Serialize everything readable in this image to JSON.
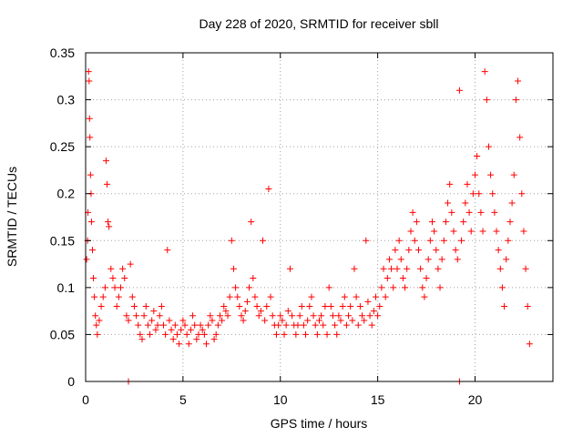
{
  "chart_data": {
    "type": "scatter",
    "title": "Day 228 of 2020, SRMTID for receiver sbll",
    "xlabel": "GPS time / hours",
    "ylabel": "SRMTID / TECUs",
    "xlim": [
      0,
      24
    ],
    "ylim": [
      0,
      0.35
    ],
    "xticks": [
      0,
      5,
      10,
      15,
      20
    ],
    "xtick_labels": [
      "0",
      "5",
      "10",
      "15",
      "20"
    ],
    "yticks": [
      0,
      0.05,
      0.1,
      0.15,
      0.2,
      0.25,
      0.3,
      0.35
    ],
    "ytick_labels": [
      "0",
      "0.05",
      "0.1",
      "0.15",
      "0.2",
      "0.25",
      "0.3",
      "0.35"
    ],
    "grid": true,
    "legend": "none",
    "marker": "+",
    "color": "#ff0000",
    "series": [
      {
        "points": [
          [
            0.05,
            0.13
          ],
          [
            0.1,
            0.15
          ],
          [
            0.12,
            0.18
          ],
          [
            0.15,
            0.33
          ],
          [
            0.18,
            0.32
          ],
          [
            0.2,
            0.28
          ],
          [
            0.22,
            0.26
          ],
          [
            0.25,
            0.22
          ],
          [
            0.28,
            0.2
          ],
          [
            0.3,
            0.17
          ],
          [
            0.35,
            0.14
          ],
          [
            0.4,
            0.11
          ],
          [
            0.45,
            0.09
          ],
          [
            0.5,
            0.07
          ],
          [
            0.55,
            0.06
          ],
          [
            0.6,
            0.05
          ],
          [
            0.7,
            0.065
          ],
          [
            0.8,
            0.08
          ],
          [
            0.9,
            0.09
          ],
          [
            1.0,
            0.1
          ],
          [
            1.05,
            0.235
          ],
          [
            1.1,
            0.21
          ],
          [
            1.15,
            0.17
          ],
          [
            1.2,
            0.165
          ],
          [
            1.3,
            0.12
          ],
          [
            1.4,
            0.11
          ],
          [
            1.5,
            0.1
          ],
          [
            1.6,
            0.08
          ],
          [
            1.7,
            0.09
          ],
          [
            1.8,
            0.1
          ],
          [
            1.9,
            0.12
          ],
          [
            2.0,
            0.11
          ],
          [
            2.1,
            0.07
          ],
          [
            2.2,
            0.065
          ],
          [
            2.3,
            0.125
          ],
          [
            2.4,
            0.09
          ],
          [
            2.5,
            0.08
          ],
          [
            2.6,
            0.07
          ],
          [
            2.7,
            0.06
          ],
          [
            2.8,
            0.05
          ],
          [
            2.9,
            0.045
          ],
          [
            3.0,
            0.07
          ],
          [
            3.1,
            0.08
          ],
          [
            3.2,
            0.06
          ],
          [
            3.3,
            0.05
          ],
          [
            3.4,
            0.065
          ],
          [
            3.5,
            0.075
          ],
          [
            3.6,
            0.055
          ],
          [
            3.7,
            0.06
          ],
          [
            3.8,
            0.07
          ],
          [
            3.9,
            0.08
          ],
          [
            4.0,
            0.06
          ],
          [
            4.1,
            0.05
          ],
          [
            4.2,
            0.14
          ],
          [
            4.3,
            0.065
          ],
          [
            4.4,
            0.055
          ],
          [
            4.5,
            0.045
          ],
          [
            4.6,
            0.06
          ],
          [
            4.7,
            0.05
          ],
          [
            4.8,
            0.04
          ],
          [
            4.9,
            0.055
          ],
          [
            5.0,
            0.065
          ],
          [
            5.1,
            0.06
          ],
          [
            5.2,
            0.05
          ],
          [
            5.3,
            0.04
          ],
          [
            5.4,
            0.055
          ],
          [
            5.5,
            0.07
          ],
          [
            5.6,
            0.06
          ],
          [
            5.7,
            0.045
          ],
          [
            5.8,
            0.05
          ],
          [
            5.9,
            0.06
          ],
          [
            6.0,
            0.055
          ],
          [
            6.1,
            0.05
          ],
          [
            6.2,
            0.04
          ],
          [
            6.3,
            0.06
          ],
          [
            6.4,
            0.07
          ],
          [
            6.5,
            0.065
          ],
          [
            6.6,
            0.045
          ],
          [
            6.7,
            0.05
          ],
          [
            6.8,
            0.06
          ],
          [
            6.9,
            0.07
          ],
          [
            7.0,
            0.065
          ],
          [
            7.1,
            0.08
          ],
          [
            7.2,
            0.075
          ],
          [
            7.3,
            0.07
          ],
          [
            7.4,
            0.09
          ],
          [
            7.5,
            0.15
          ],
          [
            7.6,
            0.12
          ],
          [
            7.7,
            0.1
          ],
          [
            7.8,
            0.09
          ],
          [
            7.9,
            0.08
          ],
          [
            8.0,
            0.07
          ],
          [
            8.1,
            0.065
          ],
          [
            8.2,
            0.075
          ],
          [
            8.3,
            0.085
          ],
          [
            8.4,
            0.1
          ],
          [
            8.5,
            0.17
          ],
          [
            8.6,
            0.11
          ],
          [
            8.7,
            0.09
          ],
          [
            8.8,
            0.08
          ],
          [
            8.9,
            0.07
          ],
          [
            9.0,
            0.075
          ],
          [
            9.1,
            0.15
          ],
          [
            9.2,
            0.065
          ],
          [
            9.3,
            0.08
          ],
          [
            9.4,
            0.205
          ],
          [
            9.5,
            0.09
          ],
          [
            9.6,
            0.07
          ],
          [
            9.7,
            0.06
          ],
          [
            9.8,
            0.05
          ],
          [
            9.9,
            0.06
          ],
          [
            10.0,
            0.07
          ],
          [
            10.1,
            0.065
          ],
          [
            10.2,
            0.05
          ],
          [
            10.3,
            0.06
          ],
          [
            10.4,
            0.075
          ],
          [
            10.5,
            0.12
          ],
          [
            10.6,
            0.07
          ],
          [
            10.7,
            0.06
          ],
          [
            10.8,
            0.05
          ],
          [
            10.9,
            0.06
          ],
          [
            11.0,
            0.07
          ],
          [
            11.1,
            0.08
          ],
          [
            11.2,
            0.06
          ],
          [
            11.3,
            0.05
          ],
          [
            11.4,
            0.065
          ],
          [
            11.5,
            0.08
          ],
          [
            11.6,
            0.09
          ],
          [
            11.7,
            0.07
          ],
          [
            11.8,
            0.06
          ],
          [
            11.9,
            0.05
          ],
          [
            12.0,
            0.065
          ],
          [
            12.1,
            0.07
          ],
          [
            12.2,
            0.06
          ],
          [
            12.3,
            0.08
          ],
          [
            12.4,
            0.05
          ],
          [
            12.5,
            0.1
          ],
          [
            12.6,
            0.08
          ],
          [
            12.7,
            0.07
          ],
          [
            12.8,
            0.06
          ],
          [
            12.9,
            0.05
          ],
          [
            13.0,
            0.07
          ],
          [
            13.1,
            0.065
          ],
          [
            13.2,
            0.08
          ],
          [
            13.3,
            0.09
          ],
          [
            13.4,
            0.06
          ],
          [
            13.5,
            0.07
          ],
          [
            13.6,
            0.08
          ],
          [
            13.7,
            0.065
          ],
          [
            13.8,
            0.12
          ],
          [
            13.9,
            0.09
          ],
          [
            14.0,
            0.06
          ],
          [
            14.1,
            0.08
          ],
          [
            14.2,
            0.07
          ],
          [
            14.3,
            0.065
          ],
          [
            14.4,
            0.15
          ],
          [
            14.5,
            0.085
          ],
          [
            14.6,
            0.07
          ],
          [
            14.7,
            0.06
          ],
          [
            14.8,
            0.075
          ],
          [
            14.9,
            0.09
          ],
          [
            15.0,
            0.07
          ],
          [
            15.1,
            0.08
          ],
          [
            15.2,
            0.1
          ],
          [
            15.3,
            0.12
          ],
          [
            15.4,
            0.09
          ],
          [
            15.5,
            0.11
          ],
          [
            15.6,
            0.13
          ],
          [
            15.7,
            0.12
          ],
          [
            15.8,
            0.1
          ],
          [
            15.9,
            0.14
          ],
          [
            16.0,
            0.12
          ],
          [
            16.1,
            0.15
          ],
          [
            16.2,
            0.13
          ],
          [
            16.3,
            0.11
          ],
          [
            16.4,
            0.1
          ],
          [
            16.5,
            0.12
          ],
          [
            16.6,
            0.14
          ],
          [
            16.7,
            0.16
          ],
          [
            16.8,
            0.18
          ],
          [
            16.9,
            0.15
          ],
          [
            17.0,
            0.17
          ],
          [
            17.1,
            0.14
          ],
          [
            17.2,
            0.12
          ],
          [
            17.3,
            0.1
          ],
          [
            17.4,
            0.09
          ],
          [
            17.5,
            0.11
          ],
          [
            17.6,
            0.13
          ],
          [
            17.7,
            0.15
          ],
          [
            17.8,
            0.17
          ],
          [
            17.9,
            0.16
          ],
          [
            18.0,
            0.14
          ],
          [
            18.1,
            0.12
          ],
          [
            18.2,
            0.1
          ],
          [
            18.3,
            0.13
          ],
          [
            18.4,
            0.15
          ],
          [
            18.5,
            0.17
          ],
          [
            18.6,
            0.19
          ],
          [
            18.7,
            0.21
          ],
          [
            18.8,
            0.18
          ],
          [
            18.9,
            0.16
          ],
          [
            19.0,
            0.14
          ],
          [
            19.1,
            0.13
          ],
          [
            19.2,
            0.31
          ],
          [
            19.3,
            0.15
          ],
          [
            19.4,
            0.17
          ],
          [
            19.5,
            0.19
          ],
          [
            19.6,
            0.21
          ],
          [
            19.7,
            0.18
          ],
          [
            19.8,
            0.16
          ],
          [
            19.9,
            0.2
          ],
          [
            20.0,
            0.22
          ],
          [
            20.1,
            0.24
          ],
          [
            20.2,
            0.2
          ],
          [
            20.3,
            0.18
          ],
          [
            20.4,
            0.16
          ],
          [
            20.5,
            0.33
          ],
          [
            20.6,
            0.3
          ],
          [
            20.7,
            0.25
          ],
          [
            20.8,
            0.22
          ],
          [
            20.9,
            0.2
          ],
          [
            21.0,
            0.18
          ],
          [
            21.1,
            0.16
          ],
          [
            21.2,
            0.14
          ],
          [
            21.3,
            0.12
          ],
          [
            21.4,
            0.1
          ],
          [
            21.5,
            0.08
          ],
          [
            21.6,
            0.13
          ],
          [
            21.7,
            0.15
          ],
          [
            21.8,
            0.17
          ],
          [
            21.9,
            0.19
          ],
          [
            22.0,
            0.22
          ],
          [
            22.1,
            0.3
          ],
          [
            22.2,
            0.32
          ],
          [
            22.3,
            0.26
          ],
          [
            22.4,
            0.2
          ],
          [
            22.5,
            0.16
          ],
          [
            22.6,
            0.12
          ],
          [
            22.7,
            0.08
          ],
          [
            22.8,
            0.04
          ],
          [
            2.2,
            0.0
          ],
          [
            19.2,
            0.0
          ]
        ]
      }
    ]
  }
}
